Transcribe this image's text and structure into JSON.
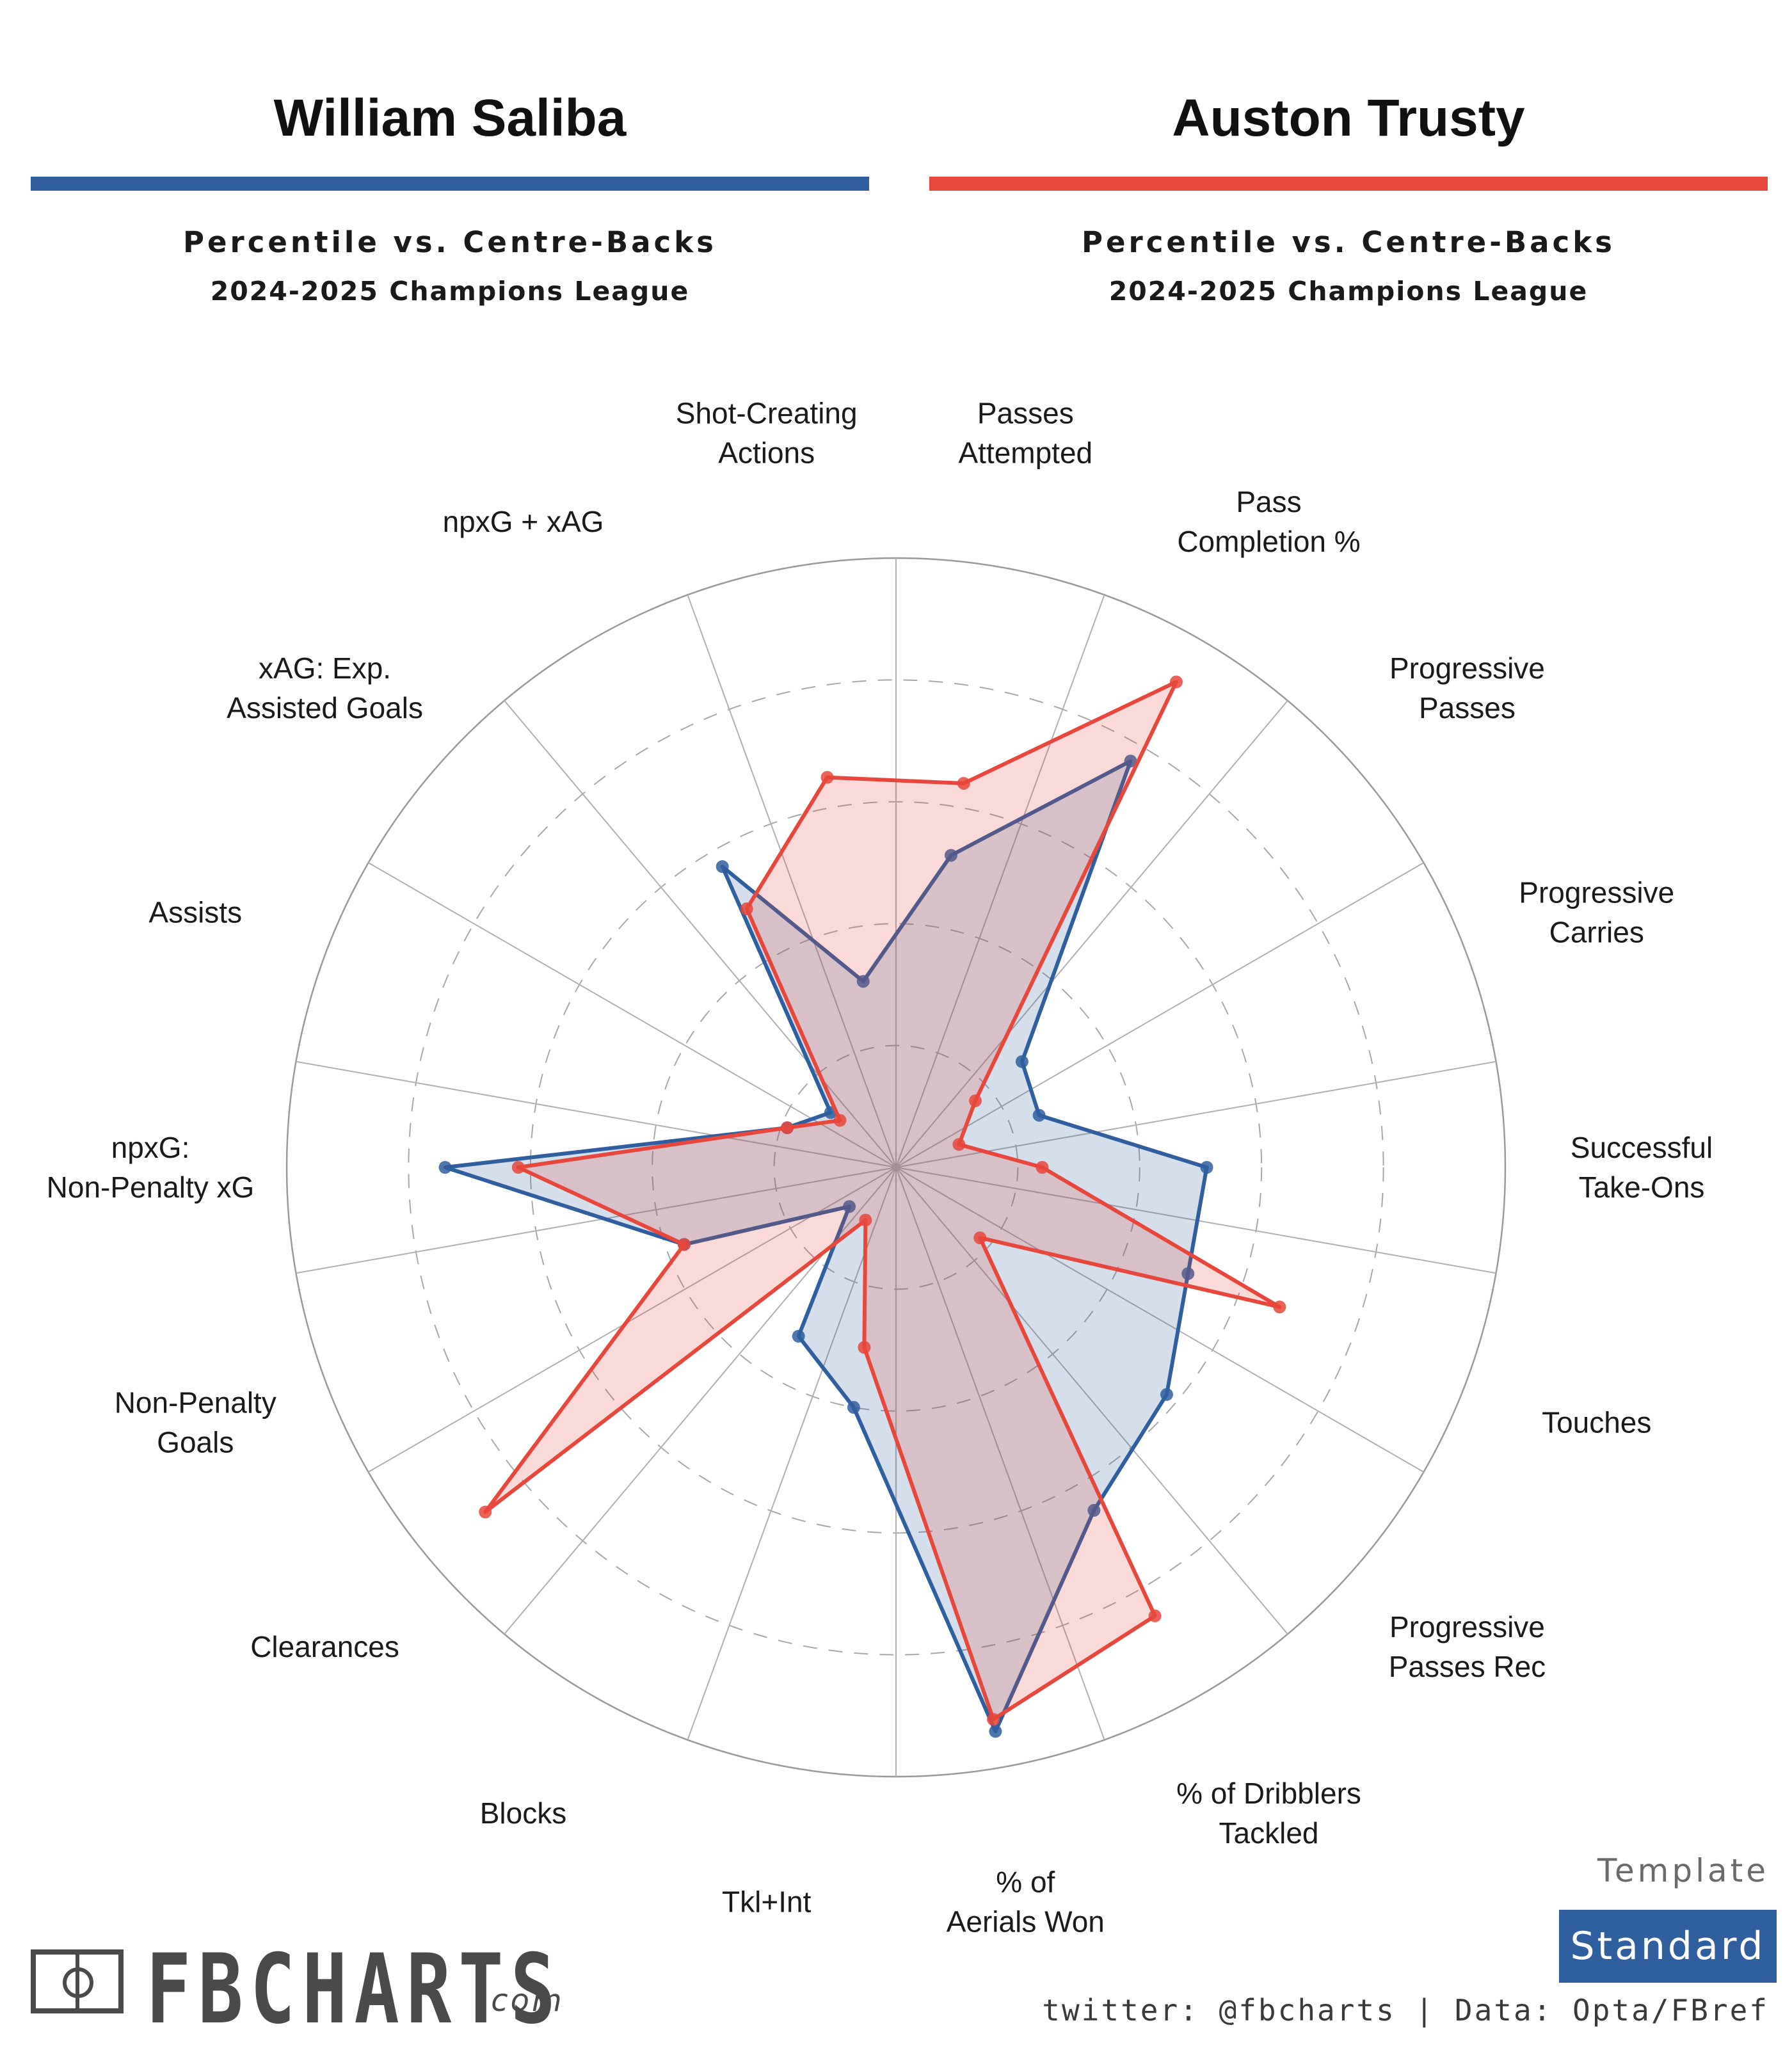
{
  "players": [
    {
      "name": "William Saliba",
      "subtitle": "Percentile vs. Centre-Backs",
      "competition": "2024-2025 Champions League",
      "color": "#2f5f9f"
    },
    {
      "name": "Auston Trusty",
      "subtitle": "Percentile vs. Centre-Backs",
      "competition": "2024-2025 Champions League",
      "color": "#e8473b"
    }
  ],
  "chart_data": {
    "type": "radar",
    "scale": [
      0,
      100
    ],
    "rings": [
      20,
      40,
      60,
      80,
      100
    ],
    "grid": "dashed inner rings, solid outer ring and spokes",
    "categories": [
      "Passes Attempted",
      "Pass Completion %",
      "Progressive Passes",
      "Progressive Carries",
      "Successful Take-Ons",
      "Touches",
      "Progressive Passes Rec",
      "% of Dribblers Tackled",
      "% of Aerials Won",
      "Tkl+Int",
      "Blocks",
      "Clearances",
      "Non-Penalty Goals",
      "npxG: Non-Penalty xG",
      "Assists",
      "xAG: Exp. Assisted Goals",
      "npxG + xAG",
      "Shot-Creating Actions"
    ],
    "series": [
      {
        "name": "William Saliba",
        "values": [
          52,
          77,
          27,
          25,
          51,
          51,
          58,
          65,
          94,
          40,
          32,
          10,
          37,
          74,
          19,
          14,
          57,
          31
        ]
      },
      {
        "name": "Auston Trusty",
        "values": [
          64,
          92,
          17,
          11,
          24,
          67,
          18,
          85,
          92,
          30,
          10,
          88,
          37,
          62,
          19,
          12,
          49,
          65
        ]
      }
    ]
  },
  "template": {
    "label": "Template",
    "value": "Standard",
    "color": "#2f5f9f"
  },
  "branding": {
    "logo_text": "FBCHARTS",
    "logo_domain": ".com",
    "credits": "twitter: @fbcharts | Data: Opta/FBref"
  }
}
